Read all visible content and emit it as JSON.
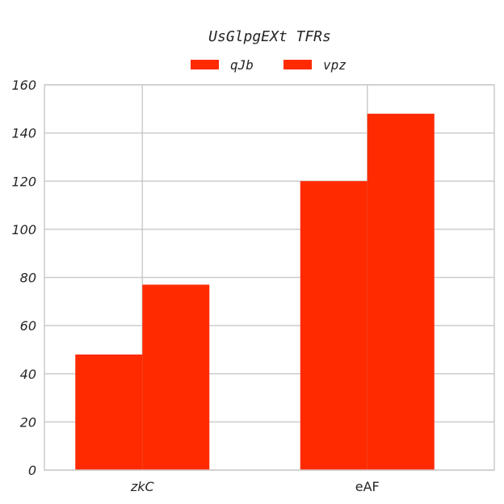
{
  "chart_data": {
    "type": "bar",
    "title": "UsGlpgEXt TFRs",
    "categories": [
      "zkC",
      "eAF"
    ],
    "category_italic": [
      true,
      false
    ],
    "series": [
      {
        "name": "qJb",
        "values": [
          48,
          120
        ],
        "color": "#ff2a00"
      },
      {
        "name": "vpz",
        "values": [
          77,
          148
        ],
        "color": "#ff2a00"
      }
    ],
    "xlabel": "",
    "ylabel": "",
    "ylim": [
      0,
      160
    ],
    "yticks": [
      "0",
      "20",
      "40",
      "60",
      "80",
      "100",
      "120",
      "140",
      "160"
    ],
    "grid": true,
    "legend_position": "top-center",
    "colors": {
      "grid": "#cccccc",
      "frame": "#cccccc",
      "text": "#262626"
    }
  }
}
